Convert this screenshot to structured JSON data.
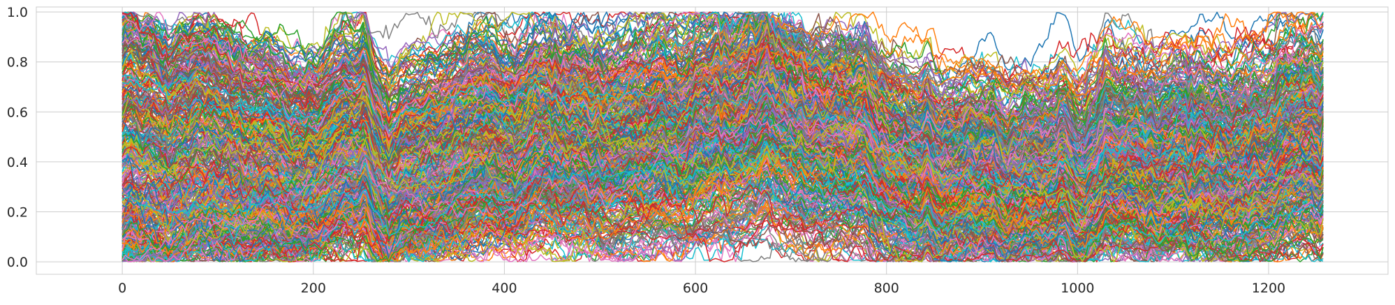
{
  "chart_data": {
    "type": "line",
    "title": "",
    "xlabel": "",
    "ylabel": "",
    "xlim": [
      -90,
      1325
    ],
    "ylim": [
      -0.05,
      1.02
    ],
    "x_range": [
      0,
      1257
    ],
    "x_ticks": [
      0,
      200,
      400,
      600,
      800,
      1000,
      1200
    ],
    "x_tick_labels": [
      "0",
      "200",
      "400",
      "600",
      "800",
      "1000",
      "1200"
    ],
    "y_ticks": [
      0.0,
      0.2,
      0.4,
      0.6,
      0.8,
      1.0
    ],
    "y_tick_labels": [
      "0.0",
      "0.2",
      "0.4",
      "0.6",
      "0.8",
      "1.0"
    ],
    "grid": true,
    "legend": "none",
    "series_count_approx": 500,
    "series_value_range": [
      0.0,
      1.0
    ],
    "color_cycle": [
      "#1f77b4",
      "#ff7f0e",
      "#2ca02c",
      "#d62728",
      "#9467bd",
      "#8c564b",
      "#e377c2",
      "#7f7f7f",
      "#bcbd22",
      "#17becf"
    ],
    "styles": {
      "background": "#ffffff",
      "grid_color": "#cccccc",
      "spine_color": "#cccccc",
      "tick_label_color": "#262626"
    }
  }
}
